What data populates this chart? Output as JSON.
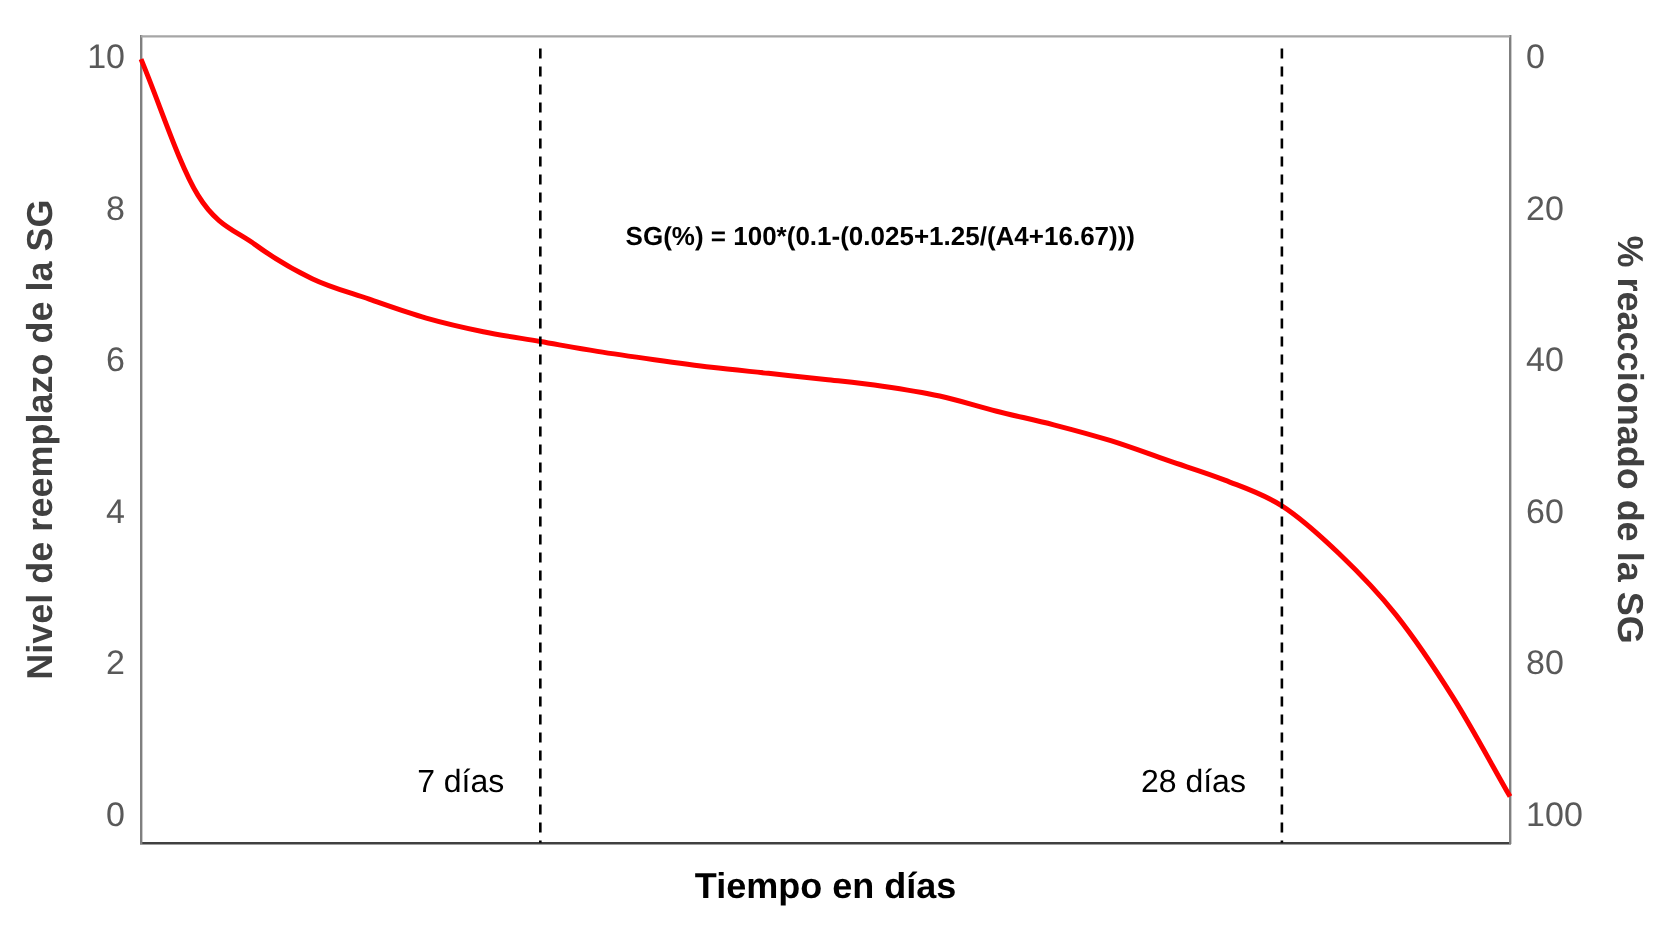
{
  "chart_data": {
    "type": "line",
    "xlabel": "Tiempo en días",
    "ylabel": "Nivel de reemplazo de la SG",
    "y2label": "% reaccionado de la SG",
    "categories": [
      null,
      null,
      null,
      null,
      null,
      null,
      null,
      null,
      null,
      null,
      null,
      null,
      null,
      null,
      null,
      null,
      null,
      null,
      null,
      null,
      null,
      null,
      null,
      null,
      null
    ],
    "series": [
      {
        "color": "#ff0000",
        "values": [
          10,
          8.2,
          7.55,
          7.1,
          6.83,
          6.58,
          6.4,
          6.27,
          6.14,
          6.03,
          5.93,
          5.85,
          5.77,
          5.68,
          5.55,
          5.35,
          5.17,
          4.96,
          4.7,
          4.44,
          4.1,
          3.47,
          2.66,
          1.57,
          0.26
        ]
      }
    ],
    "ylim": [
      -0.35,
      10.3
    ],
    "yticks": [
      0,
      2,
      4,
      6,
      8,
      10
    ],
    "y2lim": [
      103.5,
      -3
    ],
    "y2ticks": [
      0,
      20,
      40,
      60,
      80,
      100
    ],
    "annotations": [
      "SG(%) = 100*(0.1-(0.025+1.25/(A4+16.67)))",
      "7 días",
      "28 días"
    ],
    "grid": false,
    "legend": false,
    "tick_labels": "y",
    "marker": "none",
    "line_style": "solid"
  }
}
